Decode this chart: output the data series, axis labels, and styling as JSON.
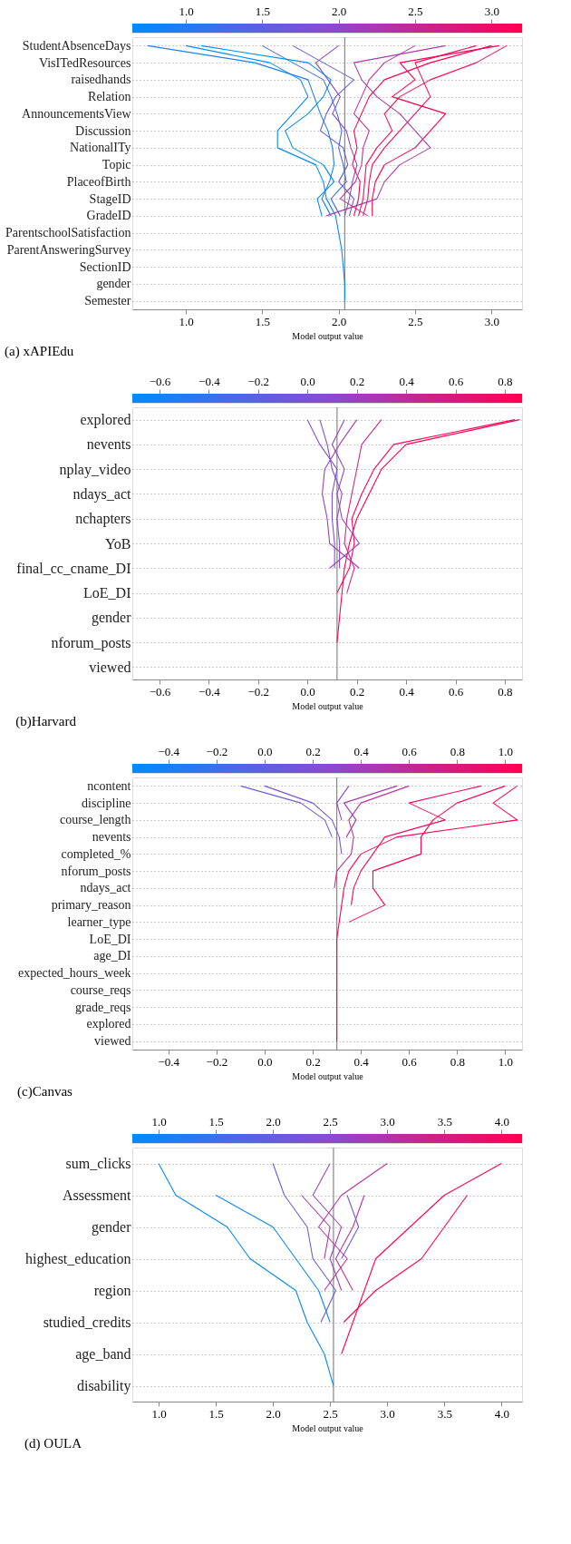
{
  "chart_data": [
    {
      "type": "line",
      "orientation": "horizontal",
      "title": "(a) xAPIEdu",
      "xlabel": "Model output value",
      "grid": "y",
      "xlim": [
        0.65,
        3.2
      ],
      "xticks": [
        {
          "value": 1,
          "label": "1.0"
        },
        1.5,
        {
          "value": 2,
          "label": "2.0"
        },
        2.5,
        {
          "value": 3,
          "label": "3.0"
        }
      ],
      "clim": [
        0.65,
        3.2
      ],
      "cticks": [
        {
          "value": 1,
          "label": "1.0"
        },
        1.5,
        {
          "value": 2,
          "label": "2.0"
        },
        2.5,
        {
          "value": 3,
          "label": "3.0"
        }
      ],
      "ref_lines": [
        {
          "axis": "x",
          "value": 2.04,
          "color": "#888888"
        }
      ],
      "categories": [
        "StudentAbsenceDays",
        "VisITedResources",
        "raisedhands",
        "Relation",
        "AnnouncementsView",
        "Discussion",
        "NationalITy",
        "Topic",
        "PlaceofBirth",
        "StageID",
        "GradeID",
        "ParentschoolSatisfaction",
        "ParentAnsweringSurvey",
        "SectionID",
        "gender",
        "Semester"
      ],
      "series": [
        {
          "color": "#008bfb",
          "values": [
            1.0,
            1.55,
            1.75,
            1.8,
            1.7,
            1.6,
            1.6,
            1.85,
            1.9,
            1.92,
            1.98,
            2.0,
            2.02,
            2.03,
            2.04,
            2.04
          ]
        },
        {
          "color": "#1f7ff0",
          "values": [
            0.75,
            1.45,
            1.8,
            1.84,
            1.88,
            1.93,
            1.96,
            1.97,
            1.94,
            1.89,
            1.95,
            null,
            null,
            null,
            null,
            null
          ]
        },
        {
          "color": "#4a6ce6",
          "values": [
            1.5,
            1.7,
            1.9,
            1.95,
            1.99,
            2.02,
            2.0,
            2.03,
            2.05,
            1.95,
            2.01,
            null,
            null,
            null,
            null,
            null
          ]
        },
        {
          "color": "#8a4bd0",
          "values": [
            2.0,
            1.85,
            1.93,
            2.01,
            1.96,
            2.05,
            2.08,
            2.12,
            2.09,
            2.07,
            2.04,
            null,
            null,
            null,
            null,
            null
          ]
        },
        {
          "color": "#6a5cdc",
          "values": [
            1.7,
            1.9,
            2.1,
            1.98,
            1.92,
            1.88,
            2.03,
            2.06,
            2.0,
            2.1,
            2.07,
            null,
            null,
            null,
            null,
            null
          ]
        },
        {
          "color": "#ff0051",
          "values": [
            3.0,
            2.6,
            2.3,
            2.2,
            2.15,
            2.1,
            2.12,
            2.09,
            2.14,
            2.13,
            2.1,
            null,
            null,
            null,
            null,
            null
          ]
        },
        {
          "color": "#ff0a55",
          "values": [
            3.1,
            2.9,
            2.6,
            2.4,
            2.3,
            2.35,
            2.25,
            2.18,
            2.17,
            2.16,
            2.13,
            null,
            null,
            null,
            null,
            null
          ]
        },
        {
          "color": "#f50d5c",
          "values": [
            2.9,
            2.5,
            2.55,
            2.6,
            2.5,
            2.4,
            2.3,
            2.22,
            2.2,
            2.19,
            2.16,
            null,
            null,
            null,
            null,
            null
          ]
        },
        {
          "color": "#c2309a",
          "values": [
            2.5,
            2.3,
            2.2,
            2.15,
            2.1,
            2.2,
            2.16,
            2.15,
            2.11,
            2.01,
            2.19,
            null,
            null,
            null,
            null,
            null
          ]
        },
        {
          "color": "#ff0051",
          "values": [
            3.05,
            2.4,
            2.5,
            2.35,
            2.7,
            2.6,
            2.5,
            2.3,
            2.24,
            2.22,
            2.22,
            null,
            null,
            null,
            null,
            null
          ]
        },
        {
          "color": "#a93aae",
          "values": [
            2.7,
            2.1,
            2.15,
            2.25,
            2.4,
            2.5,
            2.6,
            2.4,
            2.3,
            2.25,
            1.92,
            null,
            null,
            null,
            null,
            null
          ]
        },
        {
          "color": "#008bfb",
          "values": [
            1.1,
            1.8,
            1.95,
            1.9,
            1.8,
            1.65,
            1.7,
            1.9,
            1.97,
            1.86,
            1.89,
            null,
            null,
            null,
            null,
            null
          ]
        }
      ]
    },
    {
      "type": "line",
      "orientation": "horizontal",
      "title": "(b)Harvard",
      "xlabel": "Model output value",
      "grid": "y",
      "xlim": [
        -0.71,
        0.87
      ],
      "xticks": [
        -0.6,
        -0.4,
        -0.2,
        {
          "value": 0,
          "label": "0.0"
        },
        0.2,
        0.4,
        0.6,
        0.8
      ],
      "clim": [
        -0.71,
        0.87
      ],
      "cticks": [
        -0.6,
        -0.4,
        -0.2,
        {
          "value": 0,
          "label": "0.0"
        },
        0.2,
        0.4,
        0.6,
        0.8
      ],
      "ref_lines": [
        {
          "axis": "x",
          "value": 0.12,
          "color": "#888888"
        }
      ],
      "categories": [
        "explored",
        "nevents",
        "nplay_video",
        "ndays_act",
        "nchapters",
        "YoB",
        "final_cc_cname_DI",
        "LoE_DI",
        "gender",
        "nforum_posts",
        "viewed"
      ],
      "series": [
        {
          "color": "#ff0051",
          "values": [
            0.86,
            0.4,
            0.3,
            0.25,
            0.2,
            0.17,
            0.15,
            0.14,
            0.13,
            0.12,
            null
          ]
        },
        {
          "color": "#ff0455",
          "values": [
            0.84,
            0.35,
            0.27,
            0.22,
            0.18,
            0.19,
            0.17,
            0.12,
            null,
            null,
            null
          ]
        },
        {
          "color": "#d22a8a",
          "values": [
            0.3,
            0.22,
            0.2,
            0.18,
            0.16,
            0.15,
            0.19,
            0.16,
            null,
            null,
            null
          ]
        },
        {
          "color": "#8a4bd0",
          "values": [
            0.05,
            0.08,
            0.1,
            0.14,
            0.12,
            0.13,
            0.13,
            null,
            null,
            null,
            null
          ]
        },
        {
          "color": "#7f50d5",
          "values": [
            0.0,
            0.05,
            0.12,
            0.1,
            0.1,
            0.11,
            0.11,
            null,
            null,
            null,
            null
          ]
        },
        {
          "color": "#9a45c0",
          "values": [
            0.15,
            0.1,
            0.15,
            0.12,
            0.14,
            0.21,
            0.09,
            null,
            null,
            null,
            null
          ]
        },
        {
          "color": "#a240b8",
          "values": [
            0.2,
            0.13,
            0.07,
            0.06,
            0.08,
            0.09,
            0.21,
            null,
            null,
            null,
            null
          ]
        }
      ]
    },
    {
      "type": "line",
      "orientation": "horizontal",
      "title": "(c)Canvas",
      "xlabel": "Model output value",
      "grid": "y",
      "xlim": [
        -0.55,
        1.07
      ],
      "xticks": [
        -0.4,
        -0.2,
        {
          "value": 0,
          "label": "0.0"
        },
        0.2,
        0.4,
        0.6,
        0.8,
        {
          "value": 1,
          "label": "1.0"
        }
      ],
      "clim": [
        -0.55,
        1.07
      ],
      "cticks": [
        -0.4,
        -0.2,
        {
          "value": 0,
          "label": "0.0"
        },
        0.2,
        0.4,
        0.6,
        0.8,
        {
          "value": 1,
          "label": "1.0"
        }
      ],
      "ref_lines": [
        {
          "axis": "x",
          "value": 0.3,
          "color": "#888888"
        }
      ],
      "categories": [
        "ncontent",
        "discipline",
        "course_length",
        "nevents",
        "completed_%",
        "nforum_posts",
        "ndays_act",
        "primary_reason",
        "learner_type",
        "LoE_DI",
        "age_DI",
        "expected_hours_week",
        "course_reqs",
        "grade_reqs",
        "explored",
        "viewed"
      ],
      "series": [
        {
          "color": "#ff0051",
          "values": [
            1.05,
            0.95,
            1.05,
            0.55,
            0.4,
            0.35,
            0.33,
            0.32,
            0.31,
            0.3,
            0.3,
            0.3,
            0.3,
            0.3,
            0.3,
            0.3
          ]
        },
        {
          "color": "#ff0051",
          "values": [
            1.0,
            0.8,
            0.7,
            0.65,
            0.65,
            0.45,
            0.45,
            0.5,
            0.35,
            null,
            null,
            null,
            null,
            null,
            null,
            null
          ]
        },
        {
          "color": "#f00a60",
          "values": [
            0.9,
            0.6,
            0.75,
            0.5,
            0.45,
            0.4,
            0.37,
            0.36,
            null,
            null,
            null,
            null,
            null,
            null,
            null,
            null
          ]
        },
        {
          "color": "#c2309a",
          "values": [
            0.6,
            0.4,
            0.35,
            0.37,
            0.36,
            0.3,
            0.29,
            null,
            null,
            null,
            null,
            null,
            null,
            null,
            null,
            null
          ]
        },
        {
          "color": "#7a55d8",
          "values": [
            0.0,
            0.2,
            0.28,
            0.31,
            0.32,
            null,
            null,
            null,
            null,
            null,
            null,
            null,
            null,
            null,
            null,
            null
          ]
        },
        {
          "color": "#6f5adc",
          "values": [
            -0.1,
            0.15,
            0.25,
            0.28,
            null,
            null,
            null,
            null,
            null,
            null,
            null,
            null,
            null,
            null,
            null,
            null
          ]
        },
        {
          "color": "#9045c6",
          "values": [
            0.35,
            0.3,
            0.32,
            null,
            null,
            null,
            null,
            null,
            null,
            null,
            null,
            null,
            null,
            null,
            null,
            null
          ]
        },
        {
          "color": "#a63cb0",
          "values": [
            0.55,
            0.33,
            0.38,
            0.34,
            null,
            null,
            null,
            null,
            null,
            null,
            null,
            null,
            null,
            null,
            null,
            null
          ]
        }
      ]
    },
    {
      "type": "line",
      "orientation": "horizontal",
      "title": "(d) OULA",
      "xlabel": "Model output value",
      "grid": "y",
      "xlim": [
        0.77,
        4.18
      ],
      "xticks": [
        {
          "value": 1,
          "label": "1.0"
        },
        1.5,
        {
          "value": 2,
          "label": "2.0"
        },
        2.5,
        {
          "value": 3,
          "label": "3.0"
        },
        3.5,
        {
          "value": 4,
          "label": "4.0"
        }
      ],
      "clim": [
        0.77,
        4.18
      ],
      "cticks": [
        {
          "value": 1,
          "label": "1.0"
        },
        1.5,
        {
          "value": 2,
          "label": "2.0"
        },
        2.5,
        {
          "value": 3,
          "label": "3.0"
        },
        3.5,
        {
          "value": 4,
          "label": "4.0"
        }
      ],
      "ref_lines": [
        {
          "axis": "x",
          "value": 2.53,
          "color": "#888888"
        }
      ],
      "categories": [
        "sum_clicks",
        "Assessment",
        "gender",
        "highest_education",
        "region",
        "studied_credits",
        "age_band",
        "disability"
      ],
      "series": [
        {
          "color": "#008bfb",
          "values": [
            1.0,
            1.15,
            1.6,
            1.8,
            2.2,
            2.3,
            2.45,
            2.53
          ]
        },
        {
          "color": "#0a88f8",
          "values": [
            null,
            1.5,
            2.0,
            2.2,
            2.4,
            2.5,
            null,
            null
          ]
        },
        {
          "color": "#6a5cdc",
          "values": [
            2.0,
            2.1,
            2.3,
            2.35,
            2.55,
            2.42,
            null,
            null
          ]
        },
        {
          "color": "#9a45c0",
          "values": [
            2.5,
            2.35,
            2.6,
            2.5,
            2.6,
            null,
            null,
            null
          ]
        },
        {
          "color": "#ff0051",
          "values": [
            4.0,
            3.5,
            3.2,
            2.9,
            2.8,
            2.7,
            2.6,
            null
          ]
        },
        {
          "color": "#ff0051",
          "values": [
            null,
            3.7,
            3.5,
            3.3,
            2.9,
            2.62,
            null,
            null
          ]
        },
        {
          "color": "#c2309a",
          "values": [
            3.0,
            2.6,
            2.4,
            2.65,
            2.45,
            null,
            null,
            null
          ]
        },
        {
          "color": "#c2309a",
          "values": [
            null,
            2.8,
            2.7,
            2.55,
            2.7,
            null,
            null,
            null
          ]
        },
        {
          "color": "#b8359f",
          "values": [
            null,
            2.25,
            2.5,
            2.45,
            null,
            null,
            null,
            null
          ]
        },
        {
          "color": "#6a5cdc",
          "values": [
            null,
            2.65,
            2.75,
            2.6,
            null,
            null,
            null,
            null
          ]
        }
      ]
    }
  ]
}
